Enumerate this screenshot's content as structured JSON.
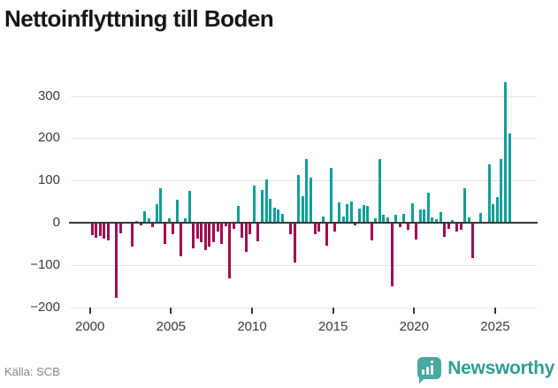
{
  "header": {
    "title": "Nettoinflyttning till Boden"
  },
  "footer": {
    "source": "Källa: SCB",
    "brand_name": "Newsworthy"
  },
  "icons": {
    "brand_logo": "speech-bubble-bar-chart-icon"
  },
  "colors": {
    "positive_bar": "#0f9f97",
    "negative_bar": "#a00d50",
    "brand_text": "#2f9d95",
    "logo_bubble": "#4aa8a0",
    "grid": "#e4e4e4",
    "axis": "#363636",
    "tick_text": "#3a3a3a",
    "source_text": "#878787"
  },
  "chart_data": {
    "type": "bar",
    "title": "Nettoinflyttning till Boden",
    "frequency": "quarterly",
    "start": "2000Q1",
    "end": "2025Q4",
    "grid": true,
    "ylim": [
      -200,
      340
    ],
    "y_ticks": [
      {
        "value": 300,
        "label": "300"
      },
      {
        "value": 200,
        "label": "200"
      },
      {
        "value": 100,
        "label": "100"
      },
      {
        "value": 0,
        "label": "0"
      },
      {
        "value": -100,
        "label": "−100"
      },
      {
        "value": -200,
        "label": "−200"
      }
    ],
    "x_ticks": [
      {
        "year": 2000,
        "label": "2000"
      },
      {
        "year": 2005,
        "label": "2005"
      },
      {
        "year": 2010,
        "label": "2010"
      },
      {
        "year": 2015,
        "label": "2015"
      },
      {
        "year": 2020,
        "label": "2020"
      },
      {
        "year": 2025,
        "label": "2025"
      }
    ],
    "series": [
      {
        "name": "Nettoinflyttning",
        "values": [
          -28,
          -34,
          -30,
          -35,
          -39,
          0,
          -175,
          -23,
          0,
          0,
          -55,
          5,
          -4,
          28,
          10,
          -9,
          45,
          82,
          -49,
          11,
          -25,
          54,
          -77,
          10,
          75,
          -58,
          -35,
          -44,
          -63,
          -54,
          -44,
          -18,
          -47,
          -7,
          -130,
          -12,
          40,
          -34,
          -66,
          -25,
          88,
          -41,
          77,
          103,
          56,
          36,
          31,
          21,
          0,
          -25,
          -92,
          113,
          63,
          150,
          107,
          -25,
          -19,
          14,
          -52,
          130,
          -18,
          48,
          15,
          45,
          50,
          -5,
          33,
          42,
          40,
          -40,
          10,
          150,
          19,
          13,
          -148,
          18,
          -9,
          21,
          -15,
          47,
          -38,
          31,
          31,
          72,
          12,
          8,
          26,
          -32,
          -13,
          6,
          -18,
          -14,
          82,
          12,
          -82,
          0,
          24,
          0,
          139,
          44,
          61,
          151,
          333,
          212
        ]
      }
    ],
    "positive_color": "#0f9f97",
    "negative_color": "#a00d50"
  }
}
